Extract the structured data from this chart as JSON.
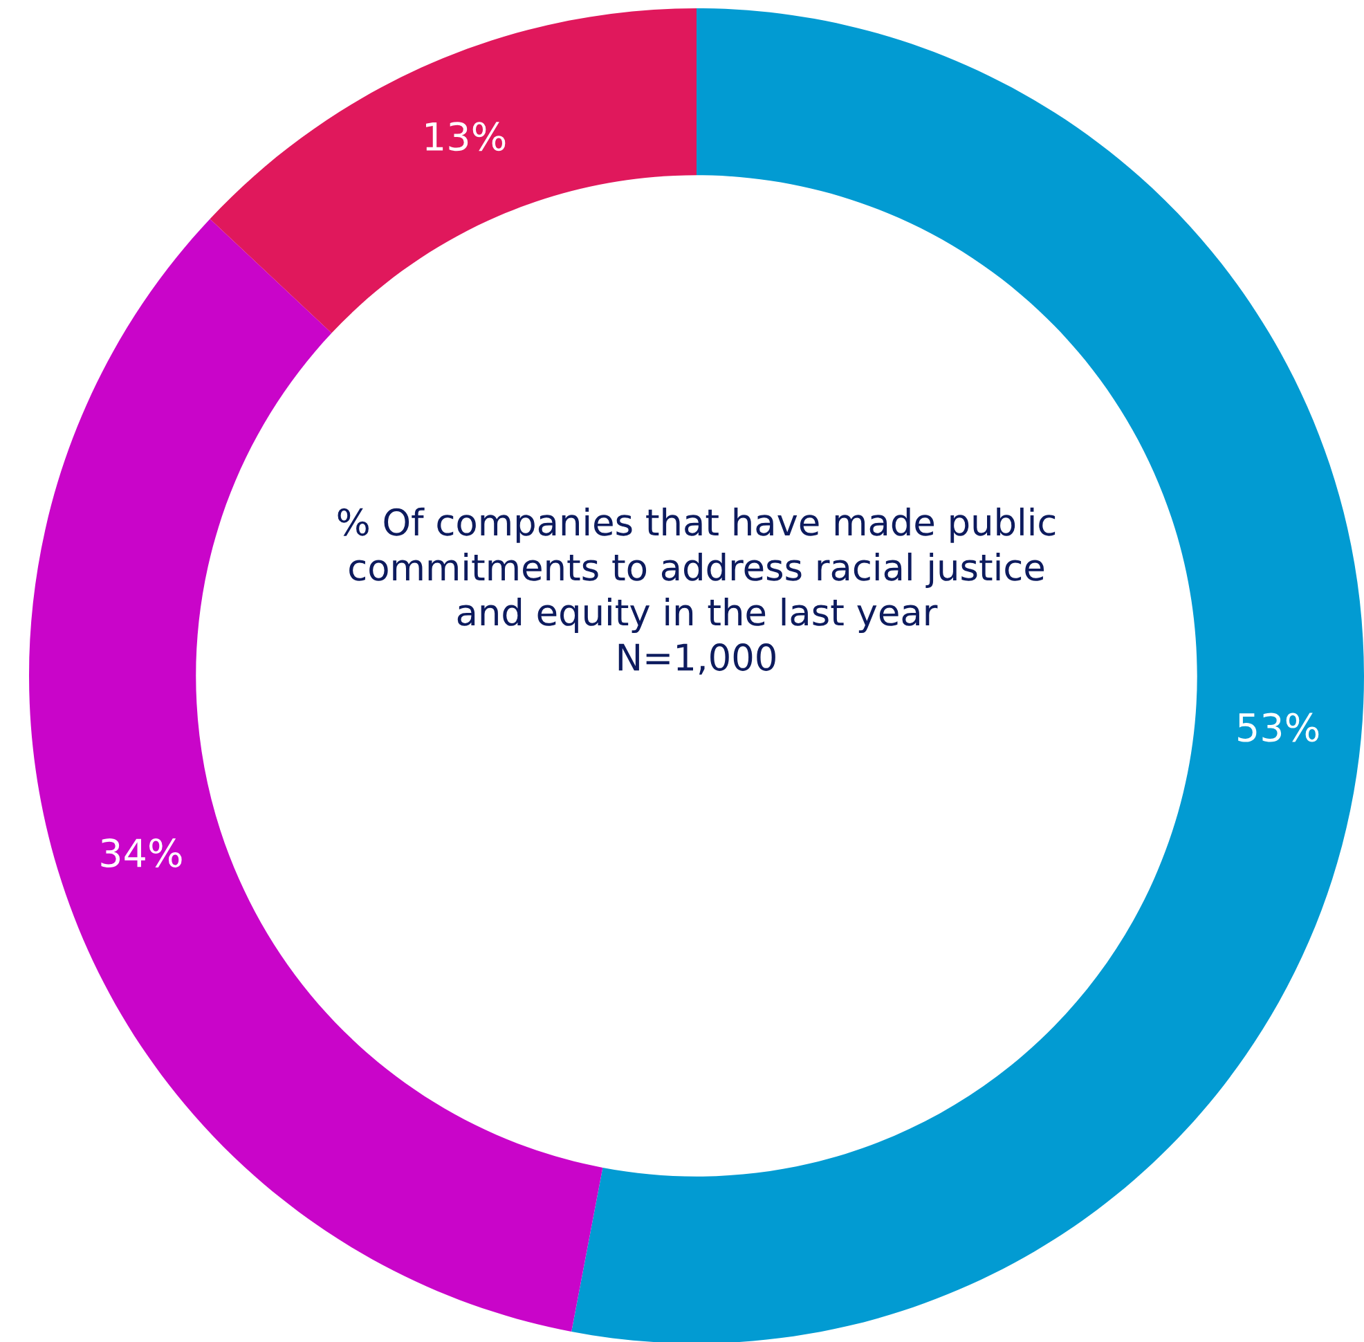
{
  "chart_data": {
    "type": "donut",
    "title": "% Of companies that have made public\ncommitments to address racial justice\nand equity in the last year\nN=1,000",
    "categories": [
      null,
      null,
      null
    ],
    "values": [
      53,
      34,
      13
    ],
    "colors": [
      "#029bd2",
      "#c905c9",
      "#e0185c"
    ],
    "value_labels": [
      "53%",
      "34%",
      "13%"
    ]
  }
}
